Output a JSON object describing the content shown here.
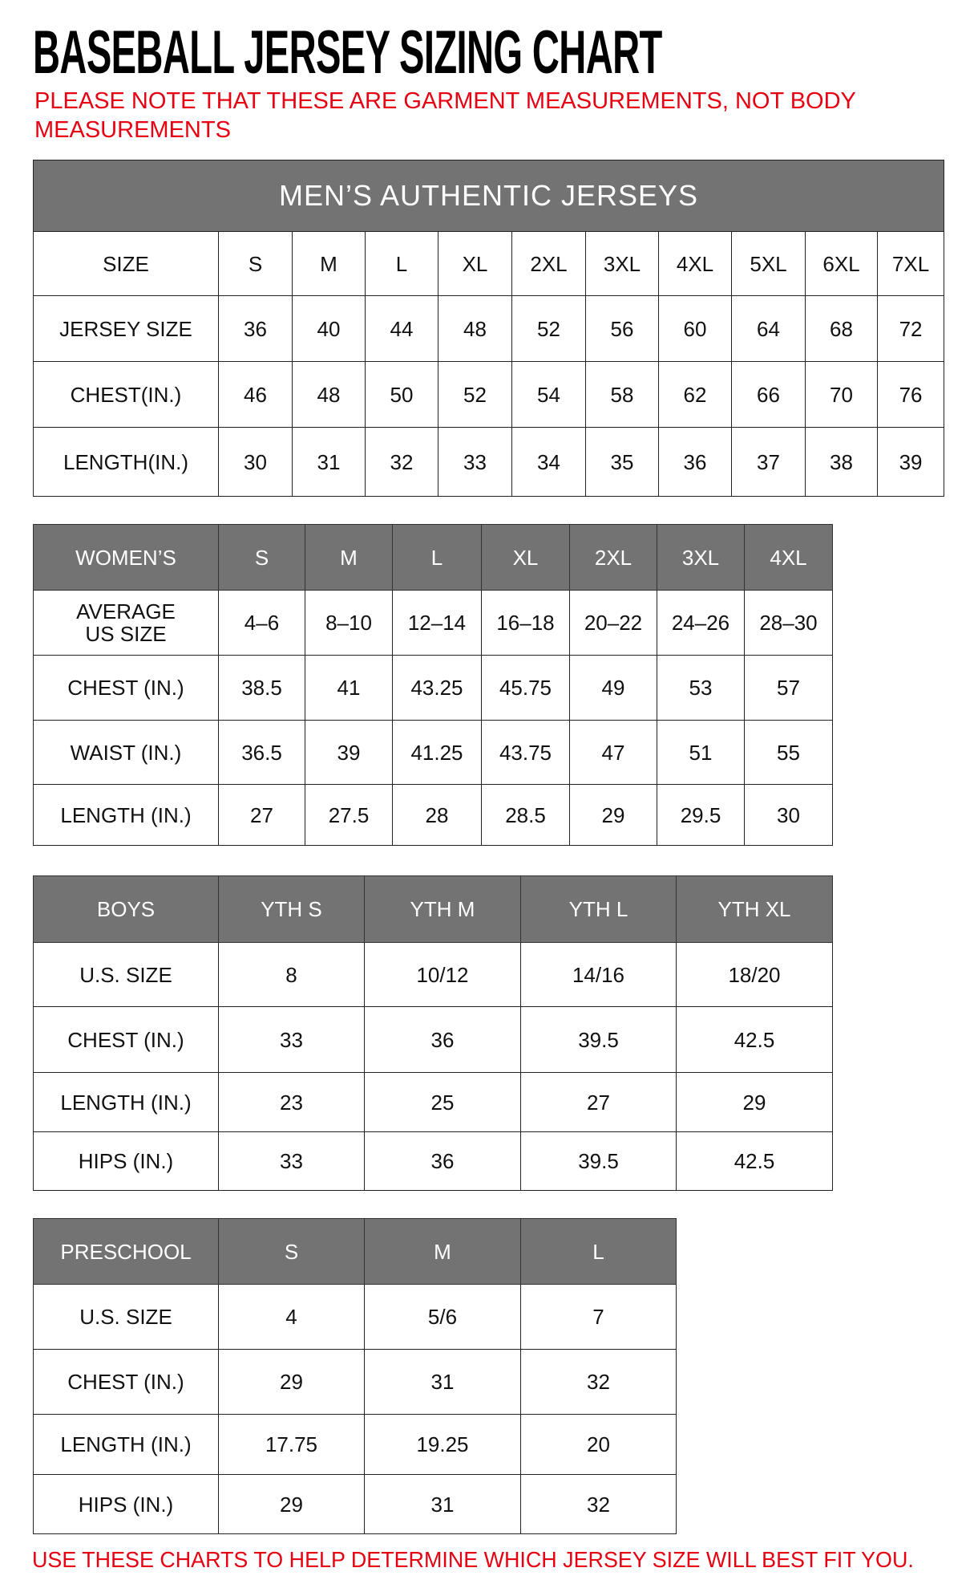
{
  "title": "BASEBALL JERSEY SIZING CHART",
  "note": "PLEASE NOTE THAT THESE ARE GARMENT MEASUREMENTS, NOT BODY MEASUREMENTS",
  "footer": "USE THESE CHARTS TO HELP DETERMINE WHICH JERSEY SIZE WILL BEST FIT YOU.",
  "colors": {
    "header_gray": "#737373",
    "accent_red": "#e60012"
  },
  "tables": [
    {
      "id": "mens",
      "title": "MEN’S AUTHENTIC JERSEYS",
      "header": [
        "SIZE",
        "S",
        "M",
        "L",
        "XL",
        "2XL",
        "3XL",
        "4XL",
        "5XL",
        "6XL",
        "7XL"
      ],
      "header_style": "white",
      "rows": [
        [
          "JERSEY SIZE",
          "36",
          "40",
          "44",
          "48",
          "52",
          "56",
          "60",
          "64",
          "68",
          "72"
        ],
        [
          "CHEST(IN.)",
          "46",
          "48",
          "50",
          "52",
          "54",
          "58",
          "62",
          "66",
          "70",
          "76"
        ],
        [
          "LENGTH(IN.)",
          "30",
          "31",
          "32",
          "33",
          "34",
          "35",
          "36",
          "37",
          "38",
          "39"
        ]
      ]
    },
    {
      "id": "womens",
      "header": [
        "WOMEN’S",
        "S",
        "M",
        "L",
        "XL",
        "2XL",
        "3XL",
        "4XL"
      ],
      "header_style": "gray",
      "rows": [
        [
          "AVERAGE US SIZE",
          "4–6",
          "8–10",
          "12–14",
          "16–18",
          "20–22",
          "24–26",
          "28–30"
        ],
        [
          "CHEST (IN.)",
          "38.5",
          "41",
          "43.25",
          "45.75",
          "49",
          "53",
          "57"
        ],
        [
          "WAIST (IN.)",
          "36.5",
          "39",
          "41.25",
          "43.75",
          "47",
          "51",
          "55"
        ],
        [
          "LENGTH (IN.)",
          "27",
          "27.5",
          "28",
          "28.5",
          "29",
          "29.5",
          "30"
        ]
      ]
    },
    {
      "id": "boys",
      "header": [
        "BOYS",
        "YTH S",
        "YTH M",
        "YTH L",
        "YTH XL"
      ],
      "header_style": "gray",
      "rows": [
        [
          "U.S. SIZE",
          "8",
          "10/12",
          "14/16",
          "18/20"
        ],
        [
          "CHEST (IN.)",
          "33",
          "36",
          "39.5",
          "42.5"
        ],
        [
          "LENGTH (IN.)",
          "23",
          "25",
          "27",
          "29"
        ],
        [
          "HIPS (IN.)",
          "33",
          "36",
          "39.5",
          "42.5"
        ]
      ]
    },
    {
      "id": "preschool",
      "header": [
        "PRESCHOOL",
        "S",
        "M",
        "L"
      ],
      "header_style": "gray",
      "rows": [
        [
          "U.S. SIZE",
          "4",
          "5/6",
          "7"
        ],
        [
          "CHEST (IN.)",
          "29",
          "31",
          "32"
        ],
        [
          "LENGTH (IN.)",
          "17.75",
          "19.25",
          "20"
        ],
        [
          "HIPS (IN.)",
          "29",
          "31",
          "32"
        ]
      ]
    }
  ]
}
